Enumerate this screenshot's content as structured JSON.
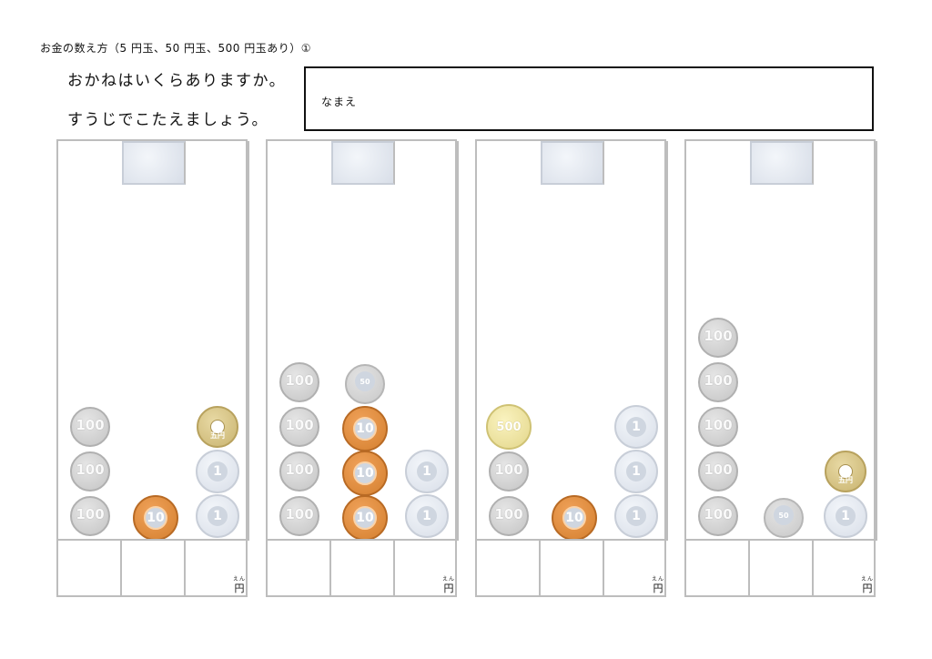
{
  "worksheet": {
    "title": "お金の数え方（5 円玉、50 円玉、500 円玉あり）①",
    "instruction1": "おかねはいくらありますか。",
    "instruction2": "すうじでこたえましょう。",
    "name_label": "なまえ",
    "unit_label": "円",
    "unit_ruby": "えん"
  },
  "coin_labels": {
    "c100": "100",
    "c10": "10",
    "c1": "1",
    "c5": "五円",
    "c50": "50",
    "c500": "500"
  },
  "panels": [
    {
      "columns": [
        [
          "100",
          "100",
          "100"
        ],
        [
          "10"
        ],
        [
          "5",
          "1",
          "1"
        ]
      ]
    },
    {
      "columns": [
        [
          "100",
          "100",
          "100",
          "100"
        ],
        [
          "50",
          "10",
          "10",
          "10"
        ],
        [
          "1",
          "1"
        ]
      ]
    },
    {
      "columns": [
        [
          "500",
          "100",
          "100"
        ],
        [
          "10"
        ],
        [
          "1",
          "1",
          "1"
        ]
      ]
    },
    {
      "columns": [
        [
          "100",
          "100",
          "100",
          "100",
          "100"
        ],
        [
          "50"
        ],
        [
          "5",
          "1"
        ]
      ]
    }
  ]
}
